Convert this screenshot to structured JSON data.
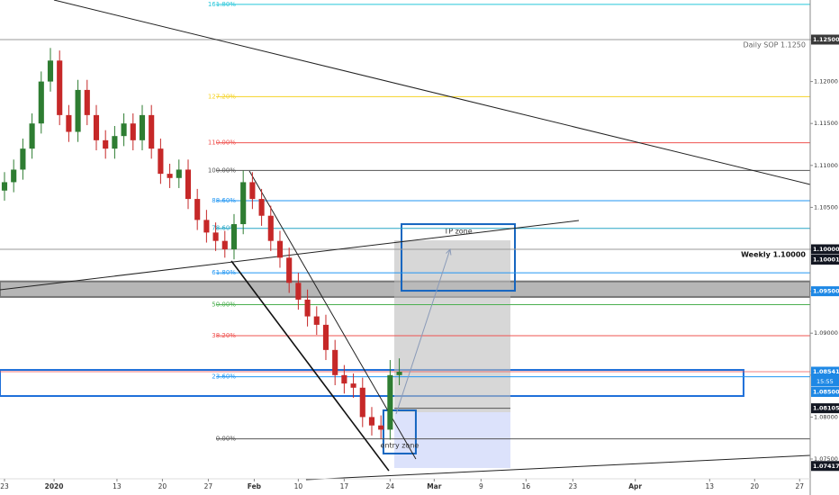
{
  "chart_data": {
    "type": "candlestick",
    "xlim": [
      -0.49,
      87.75
    ],
    "ylim": [
      1.07071,
      1.12972
    ],
    "up_color": "#2e7d32",
    "down_color": "#c62828",
    "x": [
      0,
      1,
      2,
      3,
      4,
      5,
      6,
      7,
      8,
      9,
      10,
      11,
      12,
      13,
      14,
      15,
      16,
      17,
      18,
      19,
      20,
      21,
      22,
      23,
      24,
      25,
      26,
      27,
      28,
      29,
      30,
      31,
      32,
      33,
      34,
      35,
      36,
      37,
      38,
      39,
      40,
      41,
      42,
      43
    ],
    "open": [
      1.107,
      1.108,
      1.1095,
      1.112,
      1.115,
      1.12,
      1.1225,
      1.116,
      1.114,
      1.119,
      1.116,
      1.113,
      1.112,
      1.1135,
      1.115,
      1.113,
      1.116,
      1.112,
      1.109,
      1.1085,
      1.1095,
      1.106,
      1.1035,
      1.102,
      1.101,
      1.1,
      1.103,
      1.108,
      1.106,
      1.104,
      1.101,
      1.099,
      1.096,
      1.094,
      1.092,
      1.091,
      1.088,
      1.085,
      1.084,
      1.0835,
      1.08,
      1.079,
      1.0785,
      1.085
    ],
    "high": [
      1.1092,
      1.1107,
      1.1132,
      1.1162,
      1.1212,
      1.124,
      1.1237,
      1.1172,
      1.1202,
      1.1202,
      1.1172,
      1.1142,
      1.1147,
      1.1162,
      1.1162,
      1.1172,
      1.1172,
      1.1132,
      1.1102,
      1.1107,
      1.1107,
      1.1072,
      1.1047,
      1.1032,
      1.1022,
      1.1042,
      1.1094,
      1.1092,
      1.1072,
      1.1052,
      1.1022,
      1.1002,
      1.0972,
      1.0952,
      1.0932,
      1.0922,
      1.0892,
      1.0862,
      1.0852,
      1.0847,
      1.0812,
      1.0802,
      1.0868,
      1.087
    ],
    "low": [
      1.1058,
      1.1068,
      1.1083,
      1.1108,
      1.1138,
      1.1188,
      1.1148,
      1.1128,
      1.1128,
      1.1148,
      1.1118,
      1.1108,
      1.1108,
      1.1123,
      1.1118,
      1.1118,
      1.1108,
      1.1078,
      1.1073,
      1.1073,
      1.1048,
      1.1023,
      1.1008,
      1.0998,
      1.099,
      1.0988,
      1.1018,
      1.1048,
      1.1028,
      1.0998,
      1.0978,
      1.0948,
      1.0928,
      1.0908,
      1.0898,
      1.0868,
      1.0838,
      1.0828,
      1.0823,
      1.0788,
      1.0778,
      1.0774,
      1.0773,
      1.0838
    ],
    "close": [
      1.108,
      1.1095,
      1.112,
      1.115,
      1.12,
      1.1225,
      1.116,
      1.114,
      1.119,
      1.116,
      1.113,
      1.112,
      1.1135,
      1.115,
      1.113,
      1.116,
      1.112,
      1.109,
      1.1085,
      1.1095,
      1.106,
      1.1035,
      1.102,
      1.101,
      1.1,
      1.103,
      1.108,
      1.106,
      1.104,
      1.101,
      1.099,
      1.096,
      1.094,
      1.092,
      1.091,
      1.088,
      1.085,
      1.084,
      1.0835,
      1.08,
      1.079,
      1.0785,
      1.085,
      1.0854
    ],
    "xticks": [
      {
        "value": 0,
        "label": "23"
      },
      {
        "value": 5.4,
        "label": "2020"
      },
      {
        "value": 12.25,
        "label": "13"
      },
      {
        "value": 17.2,
        "label": "20"
      },
      {
        "value": 22.2,
        "label": "27"
      },
      {
        "value": 27.2,
        "label": "Feb"
      },
      {
        "value": 32,
        "label": "10"
      },
      {
        "value": 37,
        "label": "17"
      },
      {
        "value": 42,
        "label": "24"
      },
      {
        "value": 46.8,
        "label": "Mar"
      },
      {
        "value": 51.9,
        "label": "9"
      },
      {
        "value": 56.8,
        "label": "16"
      },
      {
        "value": 61.9,
        "label": "23"
      },
      {
        "value": 68.7,
        "label": "Apr"
      },
      {
        "value": 76.8,
        "label": "13"
      },
      {
        "value": 81.7,
        "label": "20"
      },
      {
        "value": 86.6,
        "label": "27"
      }
    ],
    "yticks": [
      {
        "value": 1.125,
        "label": "1.12500"
      },
      {
        "value": 1.12,
        "label": "1.12000"
      },
      {
        "value": 1.115,
        "label": "1.11500"
      },
      {
        "value": 1.11,
        "label": "1.11000"
      },
      {
        "value": 1.105,
        "label": "1.10500"
      },
      {
        "value": 1.1,
        "label": "1.10000"
      },
      {
        "value": 1.095,
        "label": "1.09500"
      },
      {
        "value": 1.09,
        "label": "1.09000"
      },
      {
        "value": 1.085,
        "label": "1.08500"
      },
      {
        "value": 1.08,
        "label": "1.08000"
      },
      {
        "value": 1.075,
        "label": "1.07500"
      }
    ],
    "fib": {
      "x_start": 23.04,
      "x_end": 87.75,
      "levels": [
        {
          "label": "161.80%",
          "value": 1.1292,
          "color": "#26c6da"
        },
        {
          "label": "127.20%",
          "value": 1.1182,
          "color": "#f5d327"
        },
        {
          "label": "110.00%",
          "value": 1.1127,
          "color": "#ef5350"
        },
        {
          "label": "100.00%",
          "value": 1.1094,
          "color": "#555555"
        },
        {
          "label": "88.60%",
          "value": 1.1058,
          "color": "#2196f3"
        },
        {
          "label": "78.60%",
          "value": 1.1025,
          "color": "#26a6c6"
        },
        {
          "label": "61.80%",
          "value": 1.0972,
          "color": "#2196f3"
        },
        {
          "label": "50.00%",
          "value": 1.0934,
          "color": "#4caf50"
        },
        {
          "label": "38.20%",
          "value": 1.0897,
          "color": "#ef5350"
        },
        {
          "label": "23.60%",
          "value": 1.0848,
          "color": "#2196f3"
        },
        {
          "label": "0.00%",
          "value": 1.0774,
          "color": "#555555"
        }
      ]
    },
    "key_levels": [
      {
        "label": "Daily SOP 1.1250",
        "value": 1.125,
        "color": "#999999",
        "bold": false
      },
      {
        "label": "Weekly 1.10000",
        "value": 1.1,
        "color": "#999999",
        "bold": true
      }
    ],
    "price_line": {
      "value": 1.08541,
      "color": "#ef5350"
    },
    "zones": [
      {
        "x": [
          -0.49,
          87.75
        ],
        "y": [
          1.09432,
          1.09617
        ],
        "fill": "#9e9e9e",
        "stroke": "#777777",
        "opacity": 0.75
      },
      {
        "x": [
          -0.49,
          80.49
        ],
        "y": [
          1.08251,
          1.08562
        ],
        "fill": "none",
        "stroke": "#1e6fd9",
        "opacity": 1
      },
      {
        "x": [
          42.45,
          55.1
        ],
        "y": [
          1.08058,
          1.10107
        ],
        "fill": "#bdbdbd",
        "stroke": "none",
        "opacity": 0.6
      },
      {
        "x": [
          42.45,
          55.1
        ],
        "y": [
          1.07393,
          1.08058
        ],
        "fill": "#c5cef8",
        "stroke": "none",
        "opacity": 0.6
      },
      {
        "x": [
          43.24,
          55.59
        ],
        "y": [
          1.09506,
          1.103
        ],
        "fill": "none",
        "stroke": "#1565c0",
        "opacity": 1,
        "text": "TP zone"
      },
      {
        "x": [
          41.27,
          44.8
        ],
        "y": [
          1.07565,
          1.0808
        ],
        "fill": "none",
        "stroke": "#1565c0",
        "opacity": 1,
        "text": "entry zone"
      }
    ],
    "lines": [
      {
        "x": [
          5.39,
          87.75
        ],
        "y": [
          1.12972,
          1.10773
        ],
        "color": "#222222",
        "width": 1
      },
      {
        "x": [
          -0.49,
          62.55
        ],
        "y": [
          1.09517,
          1.10343
        ],
        "color": "#222222",
        "width": 1
      },
      {
        "x": [
          24.71,
          41.86
        ],
        "y": [
          1.09861,
          1.0736
        ],
        "color": "#111111",
        "width": 1.6
      },
      {
        "x": [
          26.67,
          44.8
        ],
        "y": [
          1.10934,
          1.075
        ],
        "color": "#222222",
        "width": 1
      },
      {
        "x": [
          32.84,
          87.75
        ],
        "y": [
          1.07253,
          1.07543
        ],
        "color": "#222222",
        "width": 1
      },
      {
        "x": [
          42.45,
          55.1
        ],
        "y": [
          1.08105,
          1.08105
        ],
        "color": "#555555",
        "width": 1
      },
      {
        "x": [
          42.65,
          48.53
        ],
        "y": [
          1.08037,
          1.1
        ],
        "color": "#8a9ab8",
        "width": 1,
        "arrow": true
      }
    ],
    "price_tags": [
      {
        "value": 1.125,
        "label": "1.12500",
        "color": "#3a3a3a"
      },
      {
        "value": 1.1,
        "label": "1.10000",
        "color": "#131722"
      },
      {
        "value": 1.10001,
        "label": "1.10001",
        "color": "#131722"
      },
      {
        "value": 1.095,
        "label": "1.09500",
        "color": "#1e88e5"
      },
      {
        "value": 1.08541,
        "label": "1.08541",
        "color": "#1e88e5",
        "countdown": "15:55"
      },
      {
        "value": 1.085,
        "label": "1.08500",
        "color": "#1e88e5"
      },
      {
        "value": 1.08105,
        "label": "1.08105",
        "color": "#131722"
      },
      {
        "value": 1.07417,
        "label": "1.07417",
        "color": "#131722"
      }
    ]
  }
}
